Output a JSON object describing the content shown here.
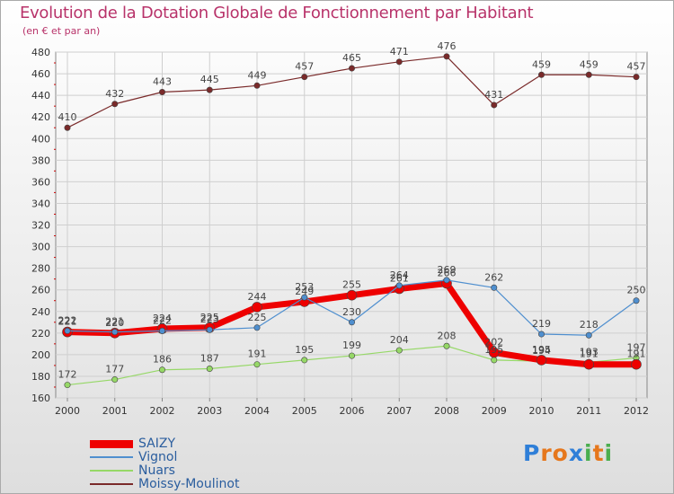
{
  "title": "Evolution de la Dotation Globale de Fonctionnement par Habitant",
  "subtitle": "(en € et par an)",
  "logo": {
    "letters": [
      "P",
      "r",
      "o",
      "x",
      "i",
      "t",
      "i"
    ],
    "colors": [
      "#2f7fd8",
      "#e6771c",
      "#e6771c",
      "#2f7fd8",
      "#4bae4f",
      "#e6771c",
      "#4bae4f"
    ]
  },
  "chart_data": {
    "type": "line",
    "title": "Evolution de la Dotation Globale de Fonctionnement par Habitant",
    "ylabel": "(en € et par an)",
    "x": [
      "2000",
      "2001",
      "2002",
      "2003",
      "2004",
      "2005",
      "2006",
      "2007",
      "2008",
      "2009",
      "2010",
      "2011",
      "2012"
    ],
    "ylim": [
      160,
      480
    ],
    "yticks": [
      160,
      180,
      200,
      220,
      240,
      260,
      280,
      300,
      320,
      340,
      360,
      380,
      400,
      420,
      440,
      460,
      480
    ],
    "grid": true,
    "legend_position": "bottom-left",
    "series": [
      {
        "name": "SAIZY",
        "color": "#ee0000",
        "values": [
          221,
          220,
          224,
          225,
          244,
          249,
          255,
          261,
          266,
          202,
          195,
          191,
          191
        ],
        "labels": [
          "221",
          "220",
          "224",
          "225",
          "244",
          "249",
          "255",
          "261",
          "266",
          "202",
          "195",
          "191",
          "191"
        ]
      },
      {
        "name": "Vignol",
        "color": "#4f8fcf",
        "values": [
          222,
          221,
          222,
          223,
          225,
          253,
          230,
          264,
          269,
          262,
          219,
          218,
          250
        ],
        "labels": [
          "222",
          "221",
          "222",
          "223",
          "225",
          "253",
          "230",
          "264",
          "269",
          "262",
          "219",
          "218",
          "250"
        ]
      },
      {
        "name": "Nuars",
        "color": "#96d867",
        "values": [
          172,
          177,
          186,
          187,
          191,
          195,
          199,
          204,
          208,
          195,
          194,
          193,
          197
        ],
        "labels": [
          "172",
          "177",
          "186",
          "187",
          "191",
          "195",
          "199",
          "204",
          "208",
          "195",
          "194",
          "193",
          "197"
        ]
      },
      {
        "name": "Moissy-Moulinot",
        "color": "#7a2a2a",
        "values": [
          410,
          432,
          443,
          445,
          449,
          457,
          465,
          471,
          476,
          431,
          459,
          459,
          457
        ],
        "labels": [
          "410",
          "432",
          "443",
          "445",
          "449",
          "457",
          "465",
          "471",
          "476",
          "431",
          "459",
          "459",
          "457"
        ]
      }
    ]
  }
}
